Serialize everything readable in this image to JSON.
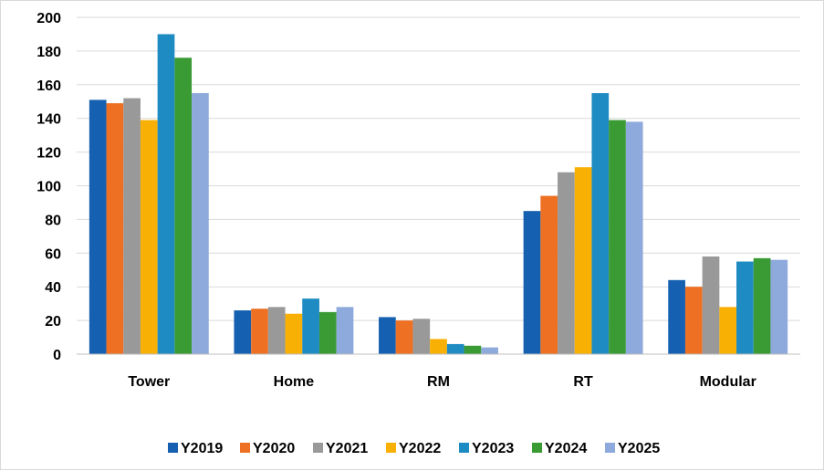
{
  "chart_data": {
    "type": "bar",
    "title": "",
    "xlabel": "",
    "ylabel": "",
    "ylim": [
      0,
      200
    ],
    "yticks": [
      0,
      20,
      40,
      60,
      80,
      100,
      120,
      140,
      160,
      180,
      200
    ],
    "grid": true,
    "legend_position": "bottom",
    "categories": [
      "Tower",
      "Home",
      "RM",
      "RT",
      "Modular"
    ],
    "series": [
      {
        "name": "Y2019",
        "color": "#1560B0",
        "values": [
          151,
          26,
          22,
          85,
          44
        ]
      },
      {
        "name": "Y2020",
        "color": "#ED7023",
        "values": [
          149,
          27,
          20,
          94,
          40
        ]
      },
      {
        "name": "Y2021",
        "color": "#999999",
        "values": [
          152,
          28,
          21,
          108,
          58
        ]
      },
      {
        "name": "Y2022",
        "color": "#F8B004",
        "values": [
          139,
          24,
          9,
          111,
          28
        ]
      },
      {
        "name": "Y2023",
        "color": "#1E8BC3",
        "values": [
          190,
          33,
          6,
          155,
          55
        ]
      },
      {
        "name": "Y2024",
        "color": "#3A9B35",
        "values": [
          176,
          25,
          5,
          139,
          57
        ]
      },
      {
        "name": "Y2025",
        "color": "#8EA9DB",
        "values": [
          155,
          28,
          4,
          138,
          56
        ]
      }
    ]
  }
}
